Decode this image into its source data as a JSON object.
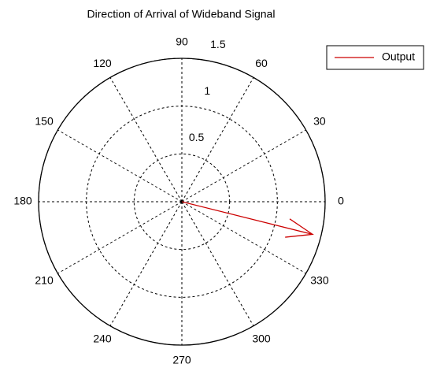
{
  "chart_data": {
    "type": "compass",
    "title": "Direction of Arrival of Wideband Signal",
    "series": [
      {
        "name": "Output",
        "color": "#cc0000",
        "theta": [
          -14
        ],
        "values": [
          1.41
        ]
      }
    ],
    "rlim": [
      0,
      1.5
    ],
    "rticks": [
      0.5,
      1,
      1.5
    ],
    "thetaticks": [
      0,
      30,
      60,
      90,
      120,
      150,
      180,
      210,
      240,
      270,
      300,
      330
    ],
    "grid": true,
    "legend": "outside-top-right"
  }
}
